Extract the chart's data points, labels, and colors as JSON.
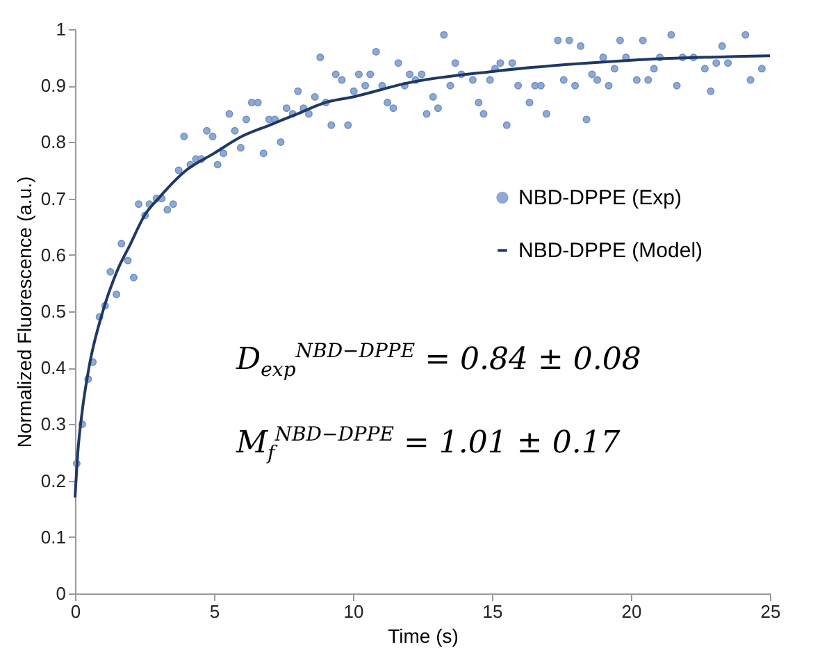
{
  "chart_data": {
    "type": "scatter",
    "xlabel": "Time (s)",
    "ylabel": "Normalized Fluorescence (a.u.)",
    "xlim": [
      0,
      25
    ],
    "xticks": [
      0,
      5,
      10,
      15,
      20,
      25
    ],
    "ylim": [
      0,
      1
    ],
    "yticks": [
      0,
      0.1,
      0.2,
      0.3,
      0.4,
      0.5,
      0.6,
      0.7,
      0.8,
      0.9,
      1
    ],
    "legend": "right",
    "annotations": [
      "D$_{exp}$$^{NBD−DPPE}$ = 0.84 ± 0.08",
      "M$_{f}$$^{NBD−DPPE}$ = 1.01 ± 0.17"
    ],
    "series": [
      {
        "name": "NBD-DPPE (Exp)",
        "color": "#8eaad4",
        "marker": "circle",
        "x": [
          0.06,
          0.26,
          0.47,
          0.64,
          0.88,
          1.08,
          1.27,
          1.49,
          1.67,
          1.9,
          2.11,
          2.29,
          2.52,
          2.68,
          2.93,
          3.12,
          3.32,
          3.53,
          3.73,
          3.92,
          4.15,
          4.35,
          4.54,
          4.74,
          4.95,
          5.13,
          5.34,
          5.55,
          5.75,
          5.96,
          6.16,
          6.36,
          6.58,
          6.78,
          6.98,
          7.19,
          7.4,
          7.61,
          7.83,
          8.02,
          8.22,
          8.41,
          8.63,
          8.82,
          9.02,
          9.22,
          9.38,
          9.6,
          9.82,
          10.03,
          10.21,
          10.44,
          10.62,
          10.83,
          11.05,
          11.24,
          11.45,
          11.63,
          11.86,
          12.04,
          12.25,
          12.47,
          12.65,
          12.88,
          13.06,
          13.27,
          13.5,
          13.68,
          13.9,
          14.31,
          14.52,
          14.7,
          14.93,
          15.11,
          15.3,
          15.53,
          15.73,
          15.94,
          16.35,
          16.55,
          16.76,
          16.96,
          17.37,
          17.58,
          17.78,
          17.99,
          18.19,
          18.4,
          18.6,
          18.79,
          19.0,
          19.2,
          19.41,
          19.61,
          19.82,
          20.21,
          20.43,
          20.62,
          20.83,
          21.04,
          21.45,
          21.65,
          21.86,
          22.25,
          22.66,
          22.87,
          23.07,
          23.28,
          23.49,
          24.12,
          24.3,
          24.71
        ],
        "values": [
          0.23,
          0.3,
          0.38,
          0.41,
          0.49,
          0.51,
          0.57,
          0.53,
          0.62,
          0.59,
          0.56,
          0.69,
          0.67,
          0.69,
          0.7,
          0.7,
          0.68,
          0.69,
          0.75,
          0.81,
          0.76,
          0.77,
          0.77,
          0.82,
          0.81,
          0.76,
          0.78,
          0.85,
          0.82,
          0.79,
          0.84,
          0.87,
          0.87,
          0.78,
          0.84,
          0.84,
          0.8,
          0.86,
          0.85,
          0.89,
          0.86,
          0.85,
          0.88,
          0.95,
          0.87,
          0.83,
          0.92,
          0.91,
          0.83,
          0.89,
          0.92,
          0.9,
          0.92,
          0.96,
          0.9,
          0.87,
          0.86,
          0.94,
          0.9,
          0.92,
          0.91,
          0.92,
          0.85,
          0.88,
          0.86,
          0.99,
          0.9,
          0.94,
          0.92,
          0.91,
          0.87,
          0.85,
          0.91,
          0.93,
          0.94,
          0.83,
          0.94,
          0.9,
          0.87,
          0.9,
          0.9,
          0.85,
          0.98,
          0.91,
          0.98,
          0.9,
          0.97,
          0.84,
          0.92,
          0.91,
          0.95,
          0.9,
          0.93,
          0.98,
          0.95,
          0.91,
          0.98,
          0.91,
          0.93,
          0.95,
          0.99,
          0.9,
          0.95,
          0.95,
          0.93,
          0.89,
          0.94,
          0.97,
          0.94,
          0.99,
          0.91,
          0.93
        ]
      },
      {
        "name": "NBD-DPPE (Model)",
        "color": "#1f3864",
        "type": "line",
        "line_style": "solid",
        "marker": "none",
        "x": [
          0,
          0.1,
          0.25,
          0.5,
          1,
          1.5,
          2,
          2.5,
          3,
          4,
          5,
          6,
          7,
          8,
          9,
          10,
          12,
          15,
          20,
          25
        ],
        "values": [
          0.17,
          0.25,
          0.32,
          0.4,
          0.5,
          0.57,
          0.62,
          0.67,
          0.7,
          0.75,
          0.78,
          0.81,
          0.83,
          0.85,
          0.87,
          0.88,
          0.905,
          0.925,
          0.945,
          0.953
        ]
      }
    ]
  }
}
